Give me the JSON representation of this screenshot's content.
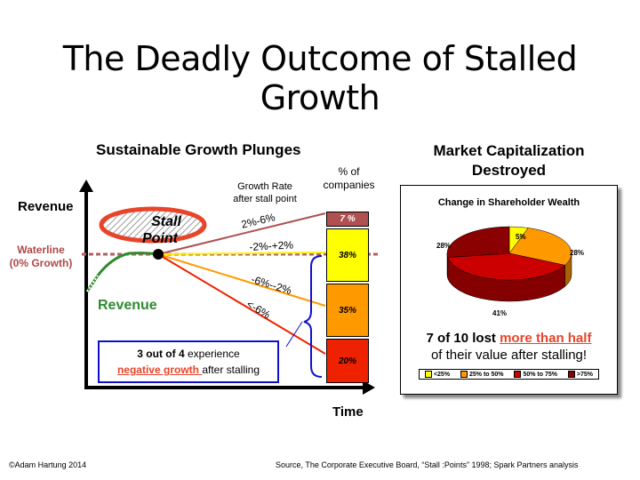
{
  "slide": {
    "title": "The Deadly Outcome of Stalled Growth",
    "copyright": "©Adam Hartung 2014",
    "source": "Source, The Corporate Executive  Board, “Stall :Points” 1998; Spark Partners analysis"
  },
  "left_chart": {
    "heading": "Sustainable Growth Plunges",
    "y_label": "Revenue",
    "x_label": "Time",
    "waterline_label": "Waterline",
    "waterline_sub": "(0% Growth)",
    "revenue_label": "Revenue",
    "stall_label_1": "Stall",
    "stall_label_2": "Point",
    "growth_rate_header_1": "Growth Rate",
    "growth_rate_header_2": "after stall point",
    "pct_header_1": "% of",
    "pct_header_2": "companies",
    "rate_labels": [
      "2%-6%",
      "-2%-+2%",
      "-6%--2%",
      "<-6%"
    ],
    "callout_part1": "3 out of 4",
    "callout_part2": " experience",
    "callout_part3": "negative growth ",
    "callout_part4": "after stalling",
    "colors": {
      "waterline": "#b06060",
      "revenue": "#2e8b2e",
      "accent": "#e8442a"
    }
  },
  "chart_data": [
    {
      "type": "bar",
      "title": "% of companies",
      "categories": [
        "2%-6%",
        "-2%-+2%",
        "-6%--2%",
        "<-6%"
      ],
      "values": [
        7,
        38,
        35,
        20
      ],
      "labels": [
        "7 %",
        "38%",
        "35%",
        "20%"
      ],
      "colors": [
        "#b05050",
        "#ffff00",
        "#ff9900",
        "#ee2200"
      ]
    },
    {
      "type": "pie",
      "title": "Change in Shareholder Wealth",
      "categories": [
        "<25%",
        "25% to 50%",
        "50% to 75%",
        ">75%"
      ],
      "values": [
        5,
        28,
        41,
        28
      ],
      "labels": [
        "5%",
        "28%",
        "41%",
        "28%"
      ],
      "colors": [
        "#ffff00",
        "#ff9900",
        "#cc0000",
        "#8b0000"
      ]
    }
  ],
  "right_panel": {
    "heading_1": "Market Capitalization",
    "heading_2": "Destroyed",
    "box_title": "Change in Shareholder Wealth",
    "summary_1": "7 of 10",
    "summary_2": " lost ",
    "summary_3": "more than half",
    "summary_4": "of their value after stalling!",
    "legend": [
      "<25%",
      "25% to 50%",
      "50% to 75%",
      ">75%"
    ]
  }
}
